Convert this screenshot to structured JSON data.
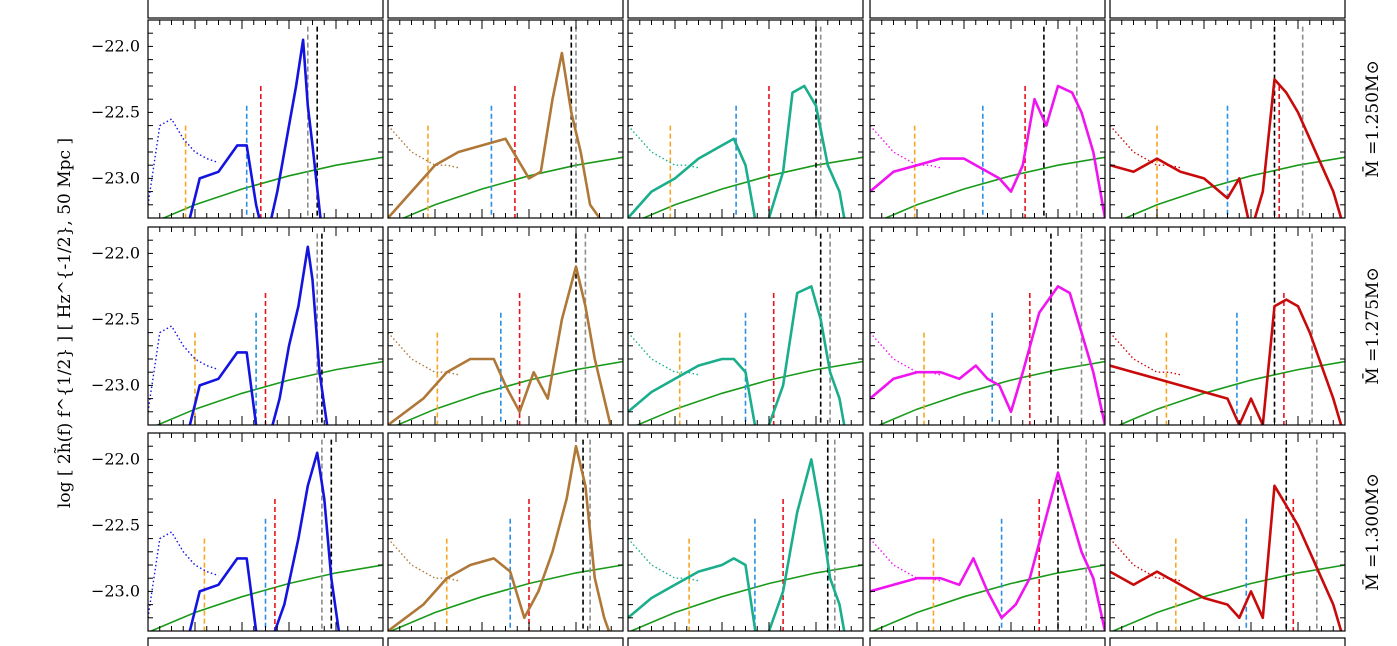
{
  "figure": {
    "ylabel": "log [ 2h̃(f) f^{1/2} ] [ Hz^{-1/2}, 50 Mpc ]",
    "row_labels": [
      "M̄ =1.250M⊙",
      "M̄ =1.275M⊙",
      "M̄ =1.300M⊙"
    ],
    "colors": {
      "sensitivity": "#1a9a1a",
      "orange_marker": "#f5a623",
      "blue_marker": "#2b8fe8",
      "red_marker": "#e8141c",
      "black_marker": "#000000",
      "gray_marker": "#8c8c8c",
      "columns": [
        "#1414e0",
        "#b07838",
        "#1aae8c",
        "#f014f0",
        "#c80a0a"
      ]
    }
  },
  "chart_data": [
    {
      "type": "line",
      "row": 0,
      "row_label": "M̄ =1.250M⊙",
      "columns": 5,
      "ylim": [
        -23.3,
        -21.8
      ],
      "yticks": [
        -22.0,
        -22.5,
        -23.0
      ],
      "ytick_labels": [
        "−22.0",
        "−22.5",
        "−23.0"
      ],
      "xlim": [
        0,
        1
      ],
      "series": [
        {
          "x": [
            0.15,
            0.22,
            0.3,
            0.38,
            0.42,
            0.46,
            0.5,
            0.55,
            0.6,
            0.63,
            0.66,
            0.68,
            0.7,
            0.74
          ],
          "y": [
            -23.5,
            -23.0,
            -22.95,
            -22.75,
            -22.75,
            -23.2,
            -23.5,
            -23.1,
            -22.6,
            -22.3,
            -21.95,
            -22.45,
            -22.75,
            -23.4
          ]
        },
        {
          "x": [
            0.0,
            0.1,
            0.2,
            0.3,
            0.4,
            0.5,
            0.6,
            0.65,
            0.7,
            0.74,
            0.78,
            0.82,
            0.86,
            0.9,
            0.93
          ],
          "y": [
            -23.3,
            -23.1,
            -22.9,
            -22.8,
            -22.75,
            -22.7,
            -23.0,
            -22.95,
            -22.4,
            -22.05,
            -22.5,
            -22.8,
            -23.2,
            -23.3,
            -23.5
          ]
        },
        {
          "x": [
            0.0,
            0.1,
            0.2,
            0.3,
            0.4,
            0.45,
            0.5,
            0.55,
            0.6,
            0.66,
            0.7,
            0.75,
            0.8,
            0.85,
            0.9,
            0.94
          ],
          "y": [
            -23.3,
            -23.1,
            -23.0,
            -22.85,
            -22.75,
            -22.7,
            -22.9,
            -23.4,
            -23.3,
            -22.95,
            -22.35,
            -22.3,
            -22.45,
            -22.9,
            -23.1,
            -23.5
          ]
        },
        {
          "x": [
            0.0,
            0.1,
            0.2,
            0.3,
            0.4,
            0.5,
            0.55,
            0.6,
            0.65,
            0.7,
            0.75,
            0.8,
            0.86,
            0.9,
            0.95,
            1.0
          ],
          "y": [
            -23.1,
            -22.95,
            -22.9,
            -22.85,
            -22.85,
            -22.95,
            -23.0,
            -23.1,
            -22.9,
            -22.4,
            -22.6,
            -22.3,
            -22.35,
            -22.5,
            -22.8,
            -23.3
          ]
        },
        {
          "x": [
            0.0,
            0.1,
            0.2,
            0.25,
            0.3,
            0.4,
            0.5,
            0.55,
            0.6,
            0.65,
            0.7,
            0.75,
            0.8,
            0.85,
            0.9,
            0.95,
            1.0
          ],
          "y": [
            -22.9,
            -22.95,
            -22.85,
            -22.9,
            -22.95,
            -23.0,
            -23.15,
            -23.0,
            -23.4,
            -23.1,
            -22.25,
            -22.35,
            -22.5,
            -22.7,
            -22.9,
            -23.1,
            -23.4
          ]
        }
      ],
      "markers": {
        "orange": 0.16,
        "blue": 0.42,
        "red": 0.48,
        "black": [
          0.72,
          0.78,
          0.8,
          0.74,
          0.7
        ],
        "gray": [
          0.68,
          0.8,
          0.82,
          0.88,
          0.82
        ]
      }
    },
    {
      "type": "line",
      "row": 1,
      "row_label": "M̄ =1.275M⊙",
      "columns": 5,
      "ylim": [
        -23.3,
        -21.8
      ],
      "yticks": [
        -22.0,
        -22.5,
        -23.0
      ],
      "ytick_labels": [
        "−22.0",
        "−22.5",
        "−23.0"
      ],
      "xlim": [
        0,
        1
      ],
      "series": [
        {
          "x": [
            0.15,
            0.22,
            0.3,
            0.38,
            0.42,
            0.46,
            0.5,
            0.56,
            0.6,
            0.64,
            0.68,
            0.7,
            0.73,
            0.77
          ],
          "y": [
            -23.5,
            -23.0,
            -22.95,
            -22.75,
            -22.75,
            -23.3,
            -23.5,
            -23.1,
            -22.7,
            -22.4,
            -21.95,
            -22.2,
            -22.9,
            -23.4
          ]
        },
        {
          "x": [
            0.0,
            0.15,
            0.25,
            0.35,
            0.45,
            0.5,
            0.56,
            0.62,
            0.68,
            0.74,
            0.8,
            0.84,
            0.88,
            0.92,
            0.96
          ],
          "y": [
            -23.3,
            -23.1,
            -22.9,
            -22.8,
            -22.8,
            -23.0,
            -23.2,
            -22.9,
            -23.1,
            -22.5,
            -22.1,
            -22.4,
            -22.8,
            -23.1,
            -23.4
          ]
        },
        {
          "x": [
            0.0,
            0.1,
            0.2,
            0.3,
            0.4,
            0.45,
            0.5,
            0.55,
            0.6,
            0.66,
            0.72,
            0.78,
            0.82,
            0.86,
            0.9,
            0.94
          ],
          "y": [
            -23.2,
            -23.05,
            -22.95,
            -22.85,
            -22.8,
            -22.8,
            -22.9,
            -23.4,
            -23.3,
            -23.0,
            -22.3,
            -22.25,
            -22.5,
            -22.9,
            -23.1,
            -23.5
          ]
        },
        {
          "x": [
            0.0,
            0.1,
            0.2,
            0.3,
            0.38,
            0.45,
            0.5,
            0.55,
            0.6,
            0.65,
            0.72,
            0.8,
            0.85,
            0.9,
            0.95,
            1.0
          ],
          "y": [
            -23.1,
            -22.95,
            -22.9,
            -22.9,
            -22.95,
            -22.85,
            -22.95,
            -23.0,
            -23.2,
            -22.9,
            -22.45,
            -22.25,
            -22.3,
            -22.6,
            -22.9,
            -23.3
          ]
        },
        {
          "x": [
            0.0,
            0.1,
            0.2,
            0.3,
            0.4,
            0.5,
            0.55,
            0.6,
            0.65,
            0.7,
            0.75,
            0.8,
            0.85,
            0.9,
            0.95,
            1.0
          ],
          "y": [
            -22.85,
            -22.9,
            -22.95,
            -23.0,
            -23.05,
            -23.1,
            -23.3,
            -23.1,
            -23.3,
            -22.4,
            -22.35,
            -22.4,
            -22.6,
            -22.85,
            -23.1,
            -23.4
          ]
        }
      ],
      "markers": {
        "orange": 0.2,
        "blue": 0.46,
        "red": 0.5,
        "black": [
          0.74,
          0.8,
          0.82,
          0.77,
          0.7
        ],
        "gray": [
          0.72,
          0.84,
          0.86,
          0.9,
          0.86
        ]
      }
    },
    {
      "type": "line",
      "row": 2,
      "row_label": "M̄ =1.300M⊙",
      "columns": 5,
      "ylim": [
        -23.3,
        -21.8
      ],
      "yticks": [
        -22.0,
        -22.5,
        -23.0
      ],
      "ytick_labels": [
        "−22.0",
        "−22.5",
        "−23.0"
      ],
      "xlim": [
        0,
        1
      ],
      "series": [
        {
          "x": [
            0.15,
            0.22,
            0.3,
            0.38,
            0.42,
            0.46,
            0.5,
            0.58,
            0.64,
            0.68,
            0.72,
            0.75,
            0.78,
            0.82
          ],
          "y": [
            -23.5,
            -23.0,
            -22.95,
            -22.75,
            -22.75,
            -23.3,
            -23.5,
            -23.1,
            -22.6,
            -22.2,
            -21.95,
            -22.3,
            -22.9,
            -23.4
          ]
        },
        {
          "x": [
            0.0,
            0.15,
            0.25,
            0.35,
            0.45,
            0.52,
            0.58,
            0.64,
            0.7,
            0.76,
            0.8,
            0.84,
            0.88,
            0.92,
            0.96
          ],
          "y": [
            -23.3,
            -23.1,
            -22.9,
            -22.8,
            -22.75,
            -22.85,
            -23.2,
            -23.0,
            -22.7,
            -22.3,
            -21.9,
            -22.2,
            -22.9,
            -23.2,
            -23.4
          ]
        },
        {
          "x": [
            0.0,
            0.1,
            0.2,
            0.3,
            0.4,
            0.45,
            0.5,
            0.55,
            0.6,
            0.66,
            0.72,
            0.78,
            0.82,
            0.86,
            0.9,
            0.94
          ],
          "y": [
            -23.2,
            -23.05,
            -22.95,
            -22.85,
            -22.8,
            -22.75,
            -22.8,
            -23.4,
            -23.3,
            -23.0,
            -22.4,
            -22.0,
            -22.4,
            -22.9,
            -23.1,
            -23.5
          ]
        },
        {
          "x": [
            0.0,
            0.1,
            0.2,
            0.3,
            0.38,
            0.44,
            0.5,
            0.56,
            0.62,
            0.68,
            0.74,
            0.8,
            0.85,
            0.9,
            0.95,
            1.0
          ],
          "y": [
            -23.0,
            -22.95,
            -22.9,
            -22.9,
            -22.95,
            -22.75,
            -23.0,
            -23.2,
            -23.1,
            -22.9,
            -22.5,
            -22.1,
            -22.4,
            -22.7,
            -22.9,
            -23.3
          ]
        },
        {
          "x": [
            0.0,
            0.1,
            0.2,
            0.3,
            0.4,
            0.5,
            0.55,
            0.6,
            0.65,
            0.7,
            0.75,
            0.8,
            0.85,
            0.9,
            0.95,
            1.0
          ],
          "y": [
            -22.85,
            -22.95,
            -22.85,
            -22.95,
            -23.05,
            -23.1,
            -23.2,
            -23.0,
            -23.2,
            -22.2,
            -22.35,
            -22.5,
            -22.7,
            -22.9,
            -23.1,
            -23.4
          ]
        }
      ],
      "markers": {
        "orange": 0.24,
        "blue": 0.5,
        "red": 0.54,
        "black": [
          0.78,
          0.83,
          0.85,
          0.8,
          0.75
        ],
        "gray": [
          0.74,
          0.86,
          0.88,
          0.92,
          0.88
        ]
      }
    }
  ]
}
